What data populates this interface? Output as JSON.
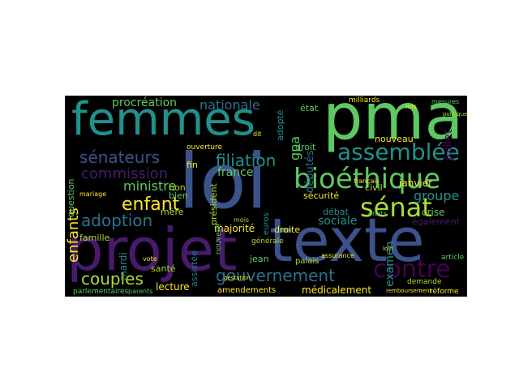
{
  "colors": {
    "background": "#000000",
    "page": "#ffffff",
    "palette": [
      "#3b528b",
      "#21918c",
      "#5ec962",
      "#440154",
      "#fde725",
      "#2c728e",
      "#481a6c",
      "#addc30",
      "#27ad81"
    ]
  },
  "words": {
    "pma": "pma",
    "loi": "loi",
    "texte": "texte",
    "projet": "projet",
    "femmes": "femmes",
    "assemblee": "assemblée",
    "bioethique": "bioéthique",
    "senat": "sénat",
    "contre": "contre",
    "gouvernement": "gouvernement",
    "senateurs": "sénateurs",
    "filiation": "filiation",
    "commission": "commission",
    "enfant": "enfant",
    "adoption": "adoption",
    "couples": "couples",
    "procreation": "procréation",
    "nationale": "nationale",
    "ministre": "ministre",
    "enfants": "enfants",
    "france": "france",
    "gpa": "gpa",
    "droit": "droit",
    "etat": "état",
    "deputes": "députés",
    "juillet": "juillet",
    "janvier": "janvier",
    "nouveau": "nouveau",
    "groupe": "groupe",
    "crise": "crise",
    "civil": "civil",
    "securite": "sécurité",
    "sociale": "sociale",
    "debat": "débat",
    "president": "président",
    "majorite": "majorité",
    "droite": "droite",
    "lecture": "lecture",
    "medicalement": "médicalement",
    "amendements": "amendements",
    "mere": "mère",
    "bien": "bien",
    "non": "non",
    "fin": "fin",
    "famille": "famille",
    "sante": "santé",
    "mardi": "mardi",
    "palais": "palais",
    "jean": "jean",
    "examen": "examen",
    "egalement": "également",
    "adopte": "adopté",
    "question": "question",
    "ouverture": "ouverture",
    "assistee": "assistée",
    "euros": "euros",
    "generale": "générale",
    "parlementaires": "parlementaires",
    "reforme": "réforme",
    "milliards": "milliards",
    "vote": "vote",
    "parents": "parents",
    "demande": "demande",
    "mariage": "mariage",
    "nouvelle": "nouvelle",
    "gestation": "gestation",
    "lois": "lois",
    "mesures": "mesures",
    "francais": "français",
    "politique": "politique",
    "article": "article",
    "remboursement": "remboursement",
    "assurance": "assurance",
    "droits": "droits",
    "loin": "loin",
    "mois": "mois",
    "dit": "dit"
  }
}
